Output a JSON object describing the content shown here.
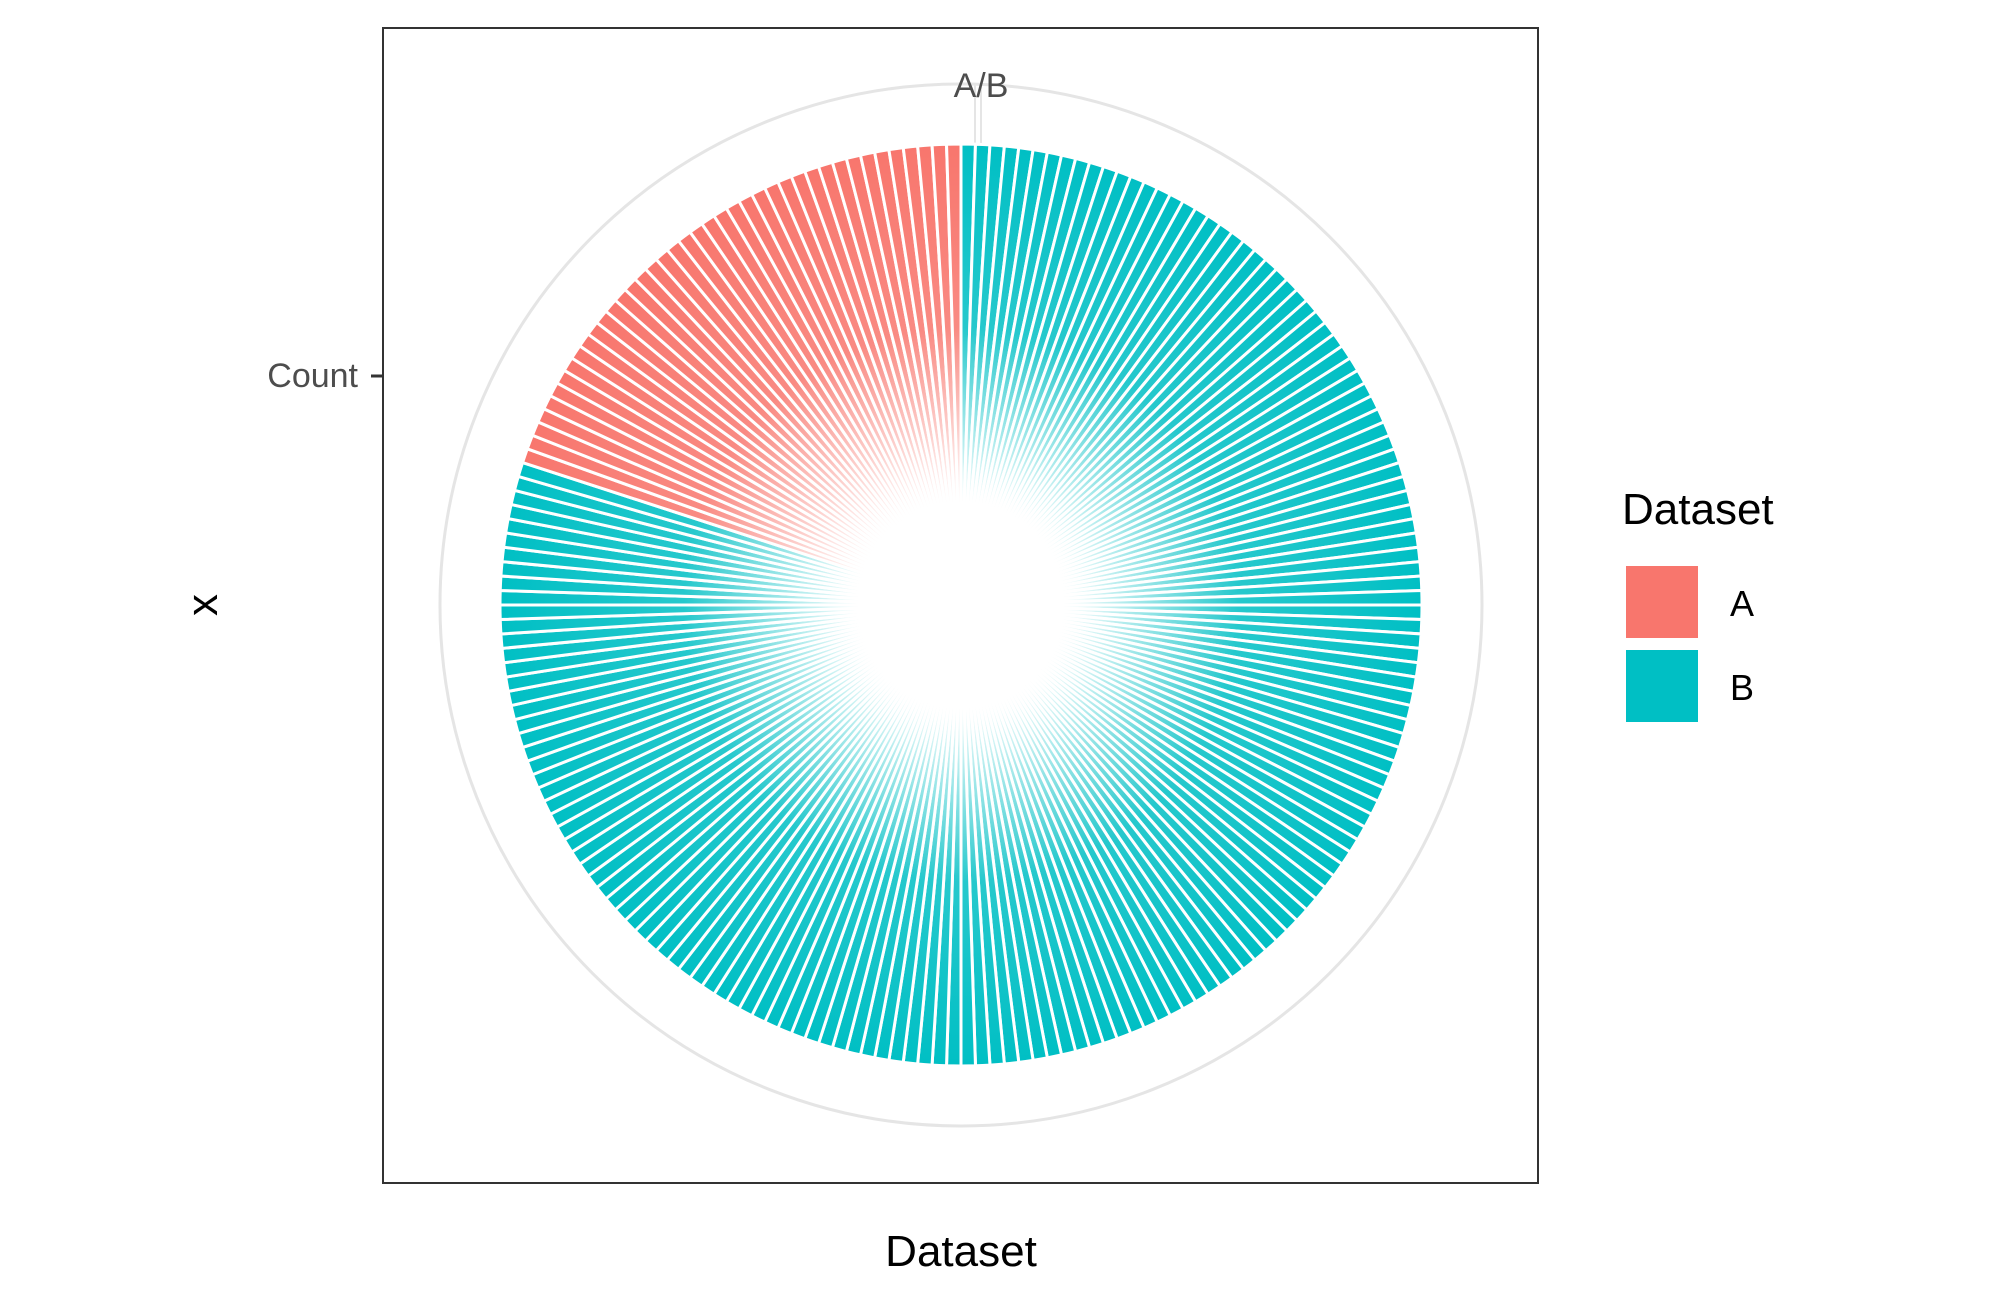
{
  "chart_data": {
    "type": "pie",
    "coord": "polar",
    "title": "",
    "xlabel": "Dataset",
    "ylabel": "x",
    "x_tick_label": "A/B",
    "y_tick_label": "Count",
    "grid": true,
    "legend_position": "right",
    "legend": {
      "title": "Dataset",
      "entries": [
        {
          "label": "A",
          "color": "#F8766D"
        },
        {
          "label": "B",
          "color": "#00BFC4"
        }
      ]
    },
    "series": [
      {
        "name": "A",
        "slices": 40,
        "share": 0.2
      },
      {
        "name": "B",
        "slices": 160,
        "share": 0.8
      }
    ]
  }
}
